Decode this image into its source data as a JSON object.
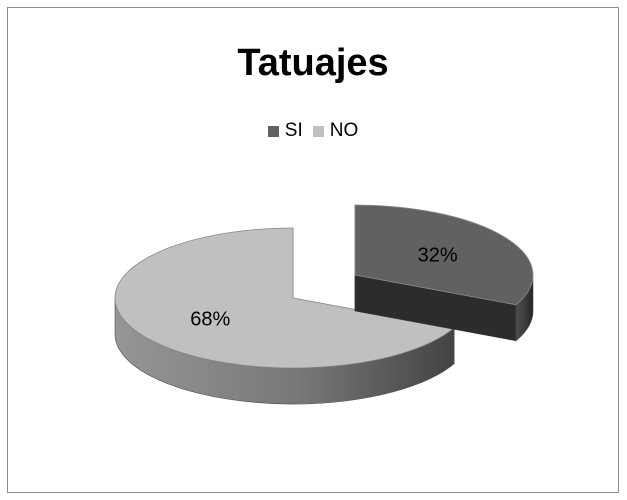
{
  "chart_data": {
    "type": "pie",
    "title": "Tatuajes",
    "categories": [
      "SI",
      "NO"
    ],
    "values": [
      32,
      68
    ],
    "data_labels": [
      "32%",
      "68%"
    ],
    "legend_placement": "top",
    "colors": {
      "SI": "#616161",
      "NO": "#c0c0c0"
    },
    "style": "3d-exploded"
  }
}
